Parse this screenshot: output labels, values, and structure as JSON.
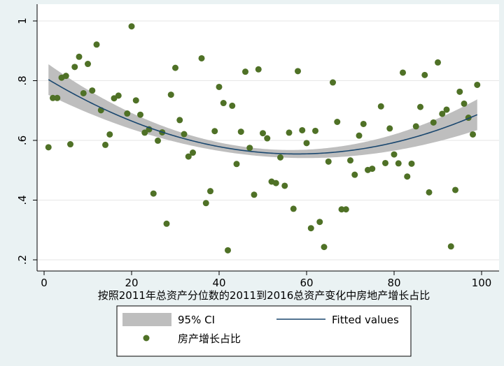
{
  "chart_data": {
    "type": "scatter",
    "title": "",
    "xlabel": "按照2011年总资产分位数的2011到2016总资产变化中房地产增长占比",
    "ylabel": "",
    "xlim": [
      0,
      100
    ],
    "ylim": [
      0.2,
      1.0
    ],
    "x_ticks": [
      0,
      20,
      40,
      60,
      80,
      100
    ],
    "x_tick_labels": [
      "0",
      "20",
      "40",
      "60",
      "80",
      "100"
    ],
    "y_ticks": [
      0.2,
      0.4,
      0.6,
      0.8,
      1.0
    ],
    "y_tick_labels": [
      ".2",
      ".4",
      ".6",
      ".8",
      "1"
    ],
    "grid": "horizontal",
    "legend_position": "bottom",
    "legend": {
      "ci_label": "95% CI",
      "fit_label": "Fitted values",
      "scatter_label": "房产增长占比"
    },
    "colors": {
      "background": "#eaf2f3",
      "plot_background": "#ffffff",
      "ci_band": "#bebebe",
      "fit_line": "#1a476f",
      "points": "#4f7126"
    },
    "fit": {
      "a": 0.8125,
      "b": -0.00893,
      "c": 7.73e-05
    },
    "ci_halfwidth": {
      "c0": 0.0125,
      "c1": 0.0405
    },
    "series": [
      {
        "name": "房产增长占比",
        "points": [
          [
            1,
            0.577
          ],
          [
            2,
            0.742
          ],
          [
            3,
            0.742
          ],
          [
            4,
            0.81
          ],
          [
            5,
            0.816
          ],
          [
            6,
            0.587
          ],
          [
            7,
            0.846
          ],
          [
            8,
            0.88
          ],
          [
            9,
            0.758
          ],
          [
            10,
            0.856
          ],
          [
            11,
            0.767
          ],
          [
            12,
            0.921
          ],
          [
            13,
            0.701
          ],
          [
            14,
            0.585
          ],
          [
            15,
            0.62
          ],
          [
            16,
            0.741
          ],
          [
            17,
            0.75
          ],
          [
            19,
            0.69
          ],
          [
            20,
            0.982
          ],
          [
            21,
            0.734
          ],
          [
            22,
            0.686
          ],
          [
            23,
            0.626
          ],
          [
            24,
            0.637
          ],
          [
            25,
            0.422
          ],
          [
            26,
            0.599
          ],
          [
            27,
            0.627
          ],
          [
            28,
            0.321
          ],
          [
            29,
            0.753
          ],
          [
            30,
            0.843
          ],
          [
            31,
            0.668
          ],
          [
            32,
            0.621
          ],
          [
            33,
            0.546
          ],
          [
            34,
            0.559
          ],
          [
            36,
            0.875
          ],
          [
            37,
            0.39
          ],
          [
            38,
            0.43
          ],
          [
            39,
            0.631
          ],
          [
            40,
            0.779
          ],
          [
            41,
            0.725
          ],
          [
            42,
            0.232
          ],
          [
            43,
            0.716
          ],
          [
            44,
            0.521
          ],
          [
            45,
            0.629
          ],
          [
            46,
            0.83
          ],
          [
            47,
            0.575
          ],
          [
            48,
            0.418
          ],
          [
            49,
            0.838
          ],
          [
            50,
            0.624
          ],
          [
            51,
            0.607
          ],
          [
            52,
            0.462
          ],
          [
            53,
            0.457
          ],
          [
            54,
            0.543
          ],
          [
            55,
            0.448
          ],
          [
            56,
            0.626
          ],
          [
            57,
            0.371
          ],
          [
            58,
            0.832
          ],
          [
            59,
            0.634
          ],
          [
            60,
            0.591
          ],
          [
            61,
            0.306
          ],
          [
            62,
            0.632
          ],
          [
            63,
            0.327
          ],
          [
            64,
            0.243
          ],
          [
            65,
            0.529
          ],
          [
            66,
            0.794
          ],
          [
            67,
            0.662
          ],
          [
            68,
            0.369
          ],
          [
            69,
            0.369
          ],
          [
            70,
            0.533
          ],
          [
            71,
            0.485
          ],
          [
            72,
            0.616
          ],
          [
            73,
            0.655
          ],
          [
            74,
            0.501
          ],
          [
            75,
            0.505
          ],
          [
            77,
            0.714
          ],
          [
            78,
            0.524
          ],
          [
            79,
            0.64
          ],
          [
            80,
            0.553
          ],
          [
            81,
            0.523
          ],
          [
            82,
            0.827
          ],
          [
            83,
            0.479
          ],
          [
            84,
            0.522
          ],
          [
            85,
            0.647
          ],
          [
            86,
            0.712
          ],
          [
            87,
            0.819
          ],
          [
            88,
            0.426
          ],
          [
            89,
            0.66
          ],
          [
            90,
            0.861
          ],
          [
            91,
            0.689
          ],
          [
            92,
            0.703
          ],
          [
            93,
            0.245
          ],
          [
            94,
            0.434
          ],
          [
            95,
            0.763
          ],
          [
            96,
            0.723
          ],
          [
            97,
            0.676
          ],
          [
            98,
            0.62
          ],
          [
            99,
            0.786
          ]
        ]
      }
    ]
  }
}
